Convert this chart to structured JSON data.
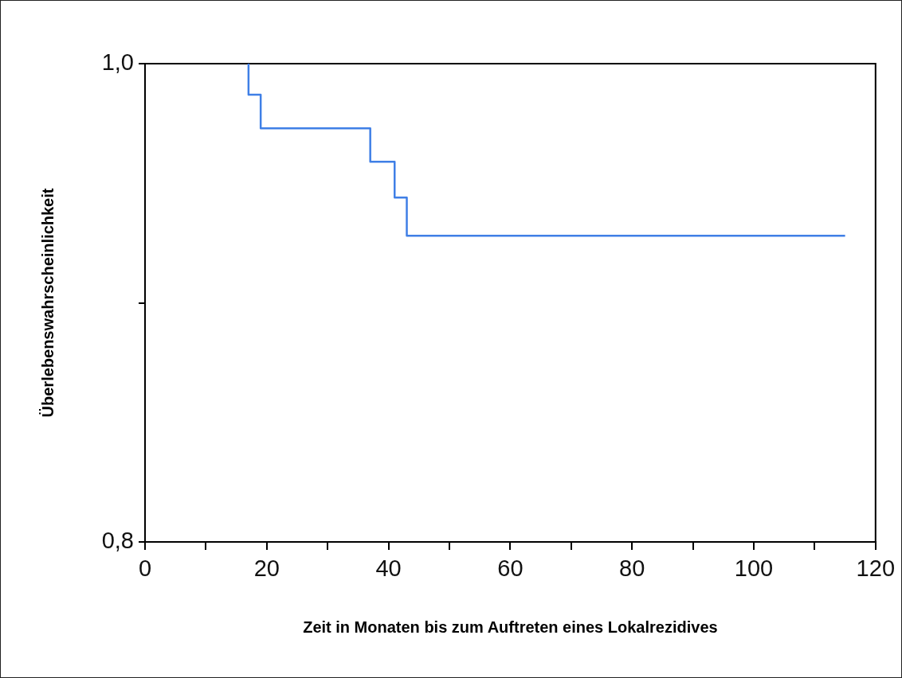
{
  "chart_data": {
    "type": "step",
    "xlabel": "Zeit in Monaten bis zum Auftreten eines Lokalrezidives",
    "ylabel": "Überlebenswahrscheinlichkeit",
    "x": [
      17,
      17,
      19,
      37,
      41,
      43,
      115
    ],
    "series": [
      {
        "color": "#3f7fe6",
        "values": [
          1.0,
          0.987,
          0.973,
          0.959,
          0.944,
          0.928,
          0.928
        ]
      }
    ],
    "xlim": [
      0,
      120
    ],
    "xticks": [
      0,
      {
        "value": 10,
        "label": null
      },
      20,
      {
        "value": 30,
        "label": null
      },
      40,
      {
        "value": 50,
        "label": null
      },
      60,
      {
        "value": 70,
        "label": null
      },
      80,
      {
        "value": 90,
        "label": null
      },
      100,
      {
        "value": 110,
        "label": null
      },
      120
    ],
    "ylim": [
      0.8,
      1.0
    ],
    "yticks": [
      {
        "value": 0.8,
        "label": "0,8"
      },
      {
        "value": 0.9,
        "label": null
      },
      {
        "value": 1.0,
        "label": "1,0"
      }
    ],
    "grid": false,
    "legend": false,
    "marker": "none",
    "line_style": "solid"
  }
}
